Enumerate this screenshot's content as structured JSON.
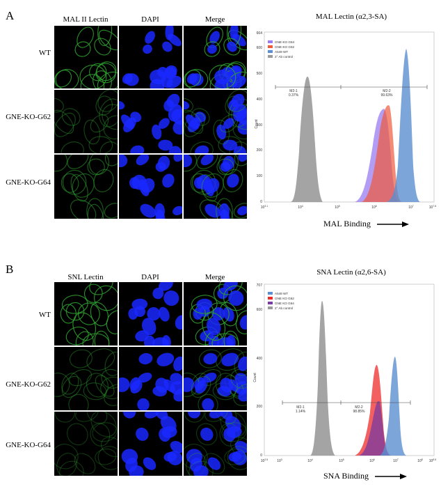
{
  "panels": [
    {
      "letter": "A",
      "columns": [
        "MAL II Lectin",
        "DAPI",
        "Merge"
      ],
      "rows": [
        "WT",
        "GNE-KO-G62",
        "GNE-KO-G64"
      ],
      "flow_title": "MAL Lectin (α2,3-SA)",
      "binding_label": "MAL Binding",
      "y_axis_label": "Count",
      "legend": [
        "GNE-KO G64",
        "GNE-KO G62",
        "A549 WT",
        "2° Ab control"
      ],
      "gates": [
        {
          "name": "M2-1",
          "value": "0.37%"
        },
        {
          "name": "M2-2",
          "value": "99.63%"
        }
      ],
      "y_ticks": [
        "0",
        "100",
        "200",
        "300",
        "400",
        "500",
        "600",
        "664"
      ],
      "x_ticks": [
        {
          "base": "10",
          "exp": "3.1"
        },
        {
          "base": "10",
          "exp": "4"
        },
        {
          "base": "10",
          "exp": "5"
        },
        {
          "base": "10",
          "exp": "6"
        },
        {
          "base": "10",
          "exp": "7"
        },
        {
          "base": "10",
          "exp": "7.6"
        }
      ]
    },
    {
      "letter": "B",
      "columns": [
        "SNL Lectin",
        "DAPI",
        "Merge"
      ],
      "rows": [
        "WT",
        "GNE-KO-G62",
        "GNE-KO-G64"
      ],
      "flow_title": "SNA Lectin (α2,6-SA)",
      "binding_label": "SNA Binding",
      "y_axis_label": "Count",
      "legend": [
        "A549 WT",
        "GNE KO G62",
        "GNE KO G64",
        "2° Ab control"
      ],
      "gates": [
        {
          "name": "M2-1",
          "value": "1.14%"
        },
        {
          "name": "M2-2",
          "value": "98.85%"
        }
      ],
      "y_ticks": [
        "0",
        "200",
        "400",
        "600",
        "707"
      ],
      "x_ticks": [
        {
          "base": "10",
          "exp": "2.5"
        },
        {
          "base": "10",
          "exp": "3"
        },
        {
          "base": "10",
          "exp": "4"
        },
        {
          "base": "10",
          "exp": "5"
        },
        {
          "base": "10",
          "exp": "6"
        },
        {
          "base": "10",
          "exp": "7"
        },
        {
          "base": "10",
          "exp": "8"
        },
        {
          "base": "10",
          "exp": "8.5"
        }
      ]
    }
  ],
  "colors": {
    "wt": "#5b8fd1",
    "g62_a": "#ee5a3c",
    "g64_a": "#9a7cf0",
    "g62_b": "#ee2b2b",
    "g64_b": "#7a3aa0",
    "control": "#9a9a9a",
    "lectin": "#2fa02f",
    "dapi": "#1a28ff"
  }
}
